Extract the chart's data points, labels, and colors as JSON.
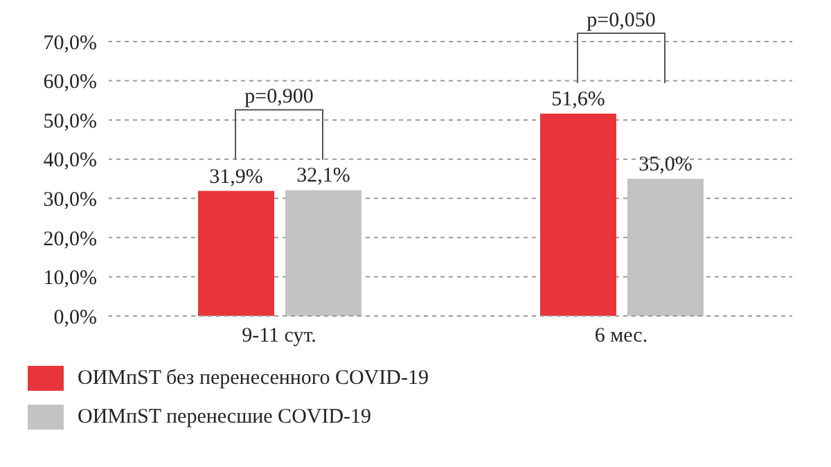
{
  "chart_data": {
    "type": "bar",
    "categories": [
      "9-11 сут.",
      "6 мес."
    ],
    "series": [
      {
        "name": "ОИМпST без перенесенного COVID-19",
        "color": "#e8353b",
        "values": [
          31.9,
          51.6
        ],
        "value_labels": [
          "31,9%",
          "51,6%"
        ]
      },
      {
        "name": "ОИМпST перенесшие COVID-19",
        "color": "#c3c3c5",
        "values": [
          32.1,
          35.0
        ],
        "value_labels": [
          "32,1%",
          "35,0%"
        ]
      }
    ],
    "ylim": [
      0,
      70
    ],
    "yticks": [
      {
        "value": 0,
        "label": "0,0%"
      },
      {
        "value": 10,
        "label": "10,0%"
      },
      {
        "value": 20,
        "label": "20,0%"
      },
      {
        "value": 30,
        "label": "30,0%"
      },
      {
        "value": 40,
        "label": "40,0%"
      },
      {
        "value": 50,
        "label": "50,0%"
      },
      {
        "value": 60,
        "label": "60,0%"
      },
      {
        "value": 70,
        "label": "70,0%"
      }
    ],
    "grid": "y",
    "legend": "bottom left",
    "annotations": [
      "p=0,900",
      "p=0,050"
    ]
  }
}
